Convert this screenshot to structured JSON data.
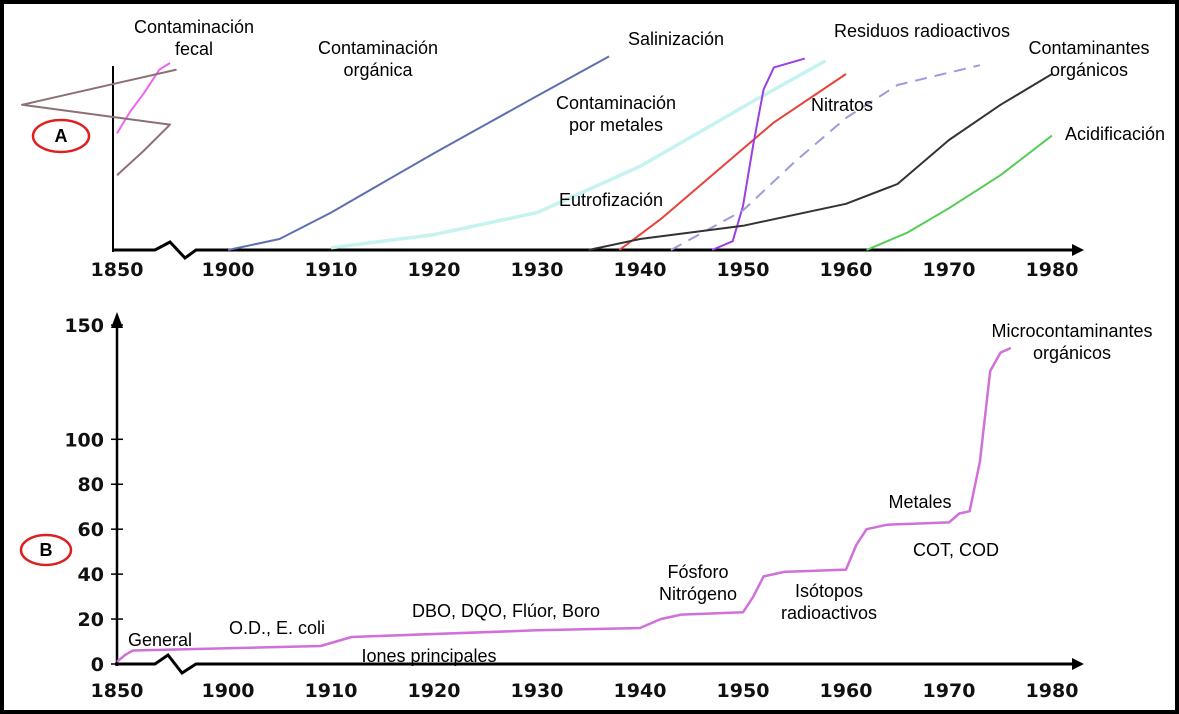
{
  "chart_data": [
    {
      "panel_label": "A",
      "type": "line",
      "x_ticks": [
        1850,
        1900,
        1910,
        1920,
        1930,
        1940,
        1950,
        1960,
        1970,
        1980
      ],
      "series": [
        {
          "name": "Contaminación fecal",
          "label_lines": [
            "Contaminación",
            "fecal"
          ],
          "color": "#ee66ee",
          "dashed": false,
          "points": [
            [
              1850,
              0.53
            ],
            [
              1855,
              0.63
            ],
            [
              1860,
              0.71
            ],
            [
              1866,
              0.82
            ],
            [
              1870,
              0.85
            ]
          ]
        },
        {
          "name": "Contaminación orgánica",
          "label_lines": [
            "Contaminación",
            "orgánica"
          ],
          "color": "#8c7074",
          "dashed": false,
          "points": [
            [
              1850,
              0.34
            ],
            [
              1860,
              0.45
            ],
            [
              1870,
              0.57
            ],
            [
              1880,
              0.66
            ],
            [
              1895,
              0.82
            ]
          ]
        },
        {
          "name": "Salinización",
          "label_lines": [
            "Salinización"
          ],
          "color": "#5e6fb0",
          "dashed": false,
          "points": [
            [
              1900,
              0.0
            ],
            [
              1905,
              0.05
            ],
            [
              1910,
              0.17
            ],
            [
              1920,
              0.44
            ],
            [
              1930,
              0.7
            ],
            [
              1937,
              0.88
            ]
          ]
        },
        {
          "name": "Contaminación por metales",
          "label_lines": [
            "Contaminación",
            "por metales"
          ],
          "color": "#c6f2f0",
          "dashed": false,
          "points": [
            [
              1910,
              0.01
            ],
            [
              1920,
              0.07
            ],
            [
              1930,
              0.17
            ],
            [
              1940,
              0.38
            ],
            [
              1950,
              0.65
            ],
            [
              1958,
              0.86
            ]
          ]
        },
        {
          "name": "Eutrofización",
          "label_lines": [
            "Eutrofización"
          ],
          "color": "#e8423b",
          "dashed": false,
          "points": [
            [
              1938,
              0.0
            ],
            [
              1942,
              0.14
            ],
            [
              1948,
              0.38
            ],
            [
              1953,
              0.58
            ],
            [
              1960,
              0.8
            ]
          ]
        },
        {
          "name": "Residuos radioactivos",
          "label_lines": [
            "Residuos radioactivos"
          ],
          "color": "#9a3fe0",
          "dashed": false,
          "points": [
            [
              1947,
              0.0
            ],
            [
              1949,
              0.04
            ],
            [
              1950,
              0.2
            ],
            [
              1951,
              0.48
            ],
            [
              1952,
              0.73
            ],
            [
              1953,
              0.83
            ],
            [
              1956,
              0.87
            ]
          ]
        },
        {
          "name": "Nitratos",
          "label_lines": [
            "Nitratos"
          ],
          "color": "#9b9cdc",
          "dashed": true,
          "points": [
            [
              1943,
              0.0
            ],
            [
              1950,
              0.18
            ],
            [
              1955,
              0.4
            ],
            [
              1960,
              0.6
            ],
            [
              1965,
              0.75
            ],
            [
              1973,
              0.84
            ]
          ]
        },
        {
          "name": "Contaminantes orgánicos",
          "label_lines": [
            "Contaminantes",
            "orgánicos"
          ],
          "color": "#333333",
          "dashed": false,
          "points": [
            [
              1935,
              0.0
            ],
            [
              1940,
              0.05
            ],
            [
              1950,
              0.11
            ],
            [
              1960,
              0.21
            ],
            [
              1965,
              0.3
            ],
            [
              1970,
              0.5
            ],
            [
              1975,
              0.66
            ],
            [
              1980,
              0.8
            ]
          ]
        },
        {
          "name": "Acidificación",
          "label_lines": [
            "Acidificación"
          ],
          "color": "#55cc55",
          "dashed": false,
          "points": [
            [
              1962,
              0.0
            ],
            [
              1966,
              0.08
            ],
            [
              1970,
              0.19
            ],
            [
              1975,
              0.34
            ],
            [
              1980,
              0.52
            ]
          ]
        }
      ]
    },
    {
      "panel_label": "B",
      "type": "line",
      "x_ticks": [
        1850,
        1900,
        1910,
        1920,
        1930,
        1940,
        1950,
        1960,
        1970,
        1980
      ],
      "y_ticks": [
        0,
        20,
        40,
        60,
        80,
        100,
        150
      ],
      "series": [
        {
          "color": "#d070d8",
          "points": [
            [
              1850,
              1
            ],
            [
              1853,
              4
            ],
            [
              1856,
              6
            ],
            [
              1900,
              7
            ],
            [
              1909,
              8
            ],
            [
              1912,
              12
            ],
            [
              1930,
              15
            ],
            [
              1940,
              16
            ],
            [
              1942,
              20
            ],
            [
              1944,
              22
            ],
            [
              1950,
              23
            ],
            [
              1951,
              30
            ],
            [
              1952,
              39
            ],
            [
              1954,
              41
            ],
            [
              1960,
              42
            ],
            [
              1961,
              53
            ],
            [
              1962,
              60
            ],
            [
              1964,
              62
            ],
            [
              1970,
              63
            ],
            [
              1971,
              67
            ],
            [
              1972,
              68
            ],
            [
              1973,
              90
            ],
            [
              1974,
              130
            ],
            [
              1975,
              138
            ],
            [
              1976,
              140
            ]
          ]
        }
      ],
      "annotations": [
        {
          "lines": [
            "General"
          ]
        },
        {
          "lines": [
            "O.D., E. coli"
          ]
        },
        {
          "lines": [
            "Iones principales"
          ]
        },
        {
          "lines": [
            "DBO, DQO, Flúor, Boro"
          ]
        },
        {
          "lines": [
            "Fósforo",
            "Nitrógeno"
          ]
        },
        {
          "lines": [
            "Isótopos",
            "radioactivos"
          ]
        },
        {
          "lines": [
            "Metales"
          ]
        },
        {
          "lines": [
            "COT, COD"
          ]
        },
        {
          "lines": [
            "Microcontaminantes",
            "orgánicos"
          ]
        }
      ]
    }
  ]
}
